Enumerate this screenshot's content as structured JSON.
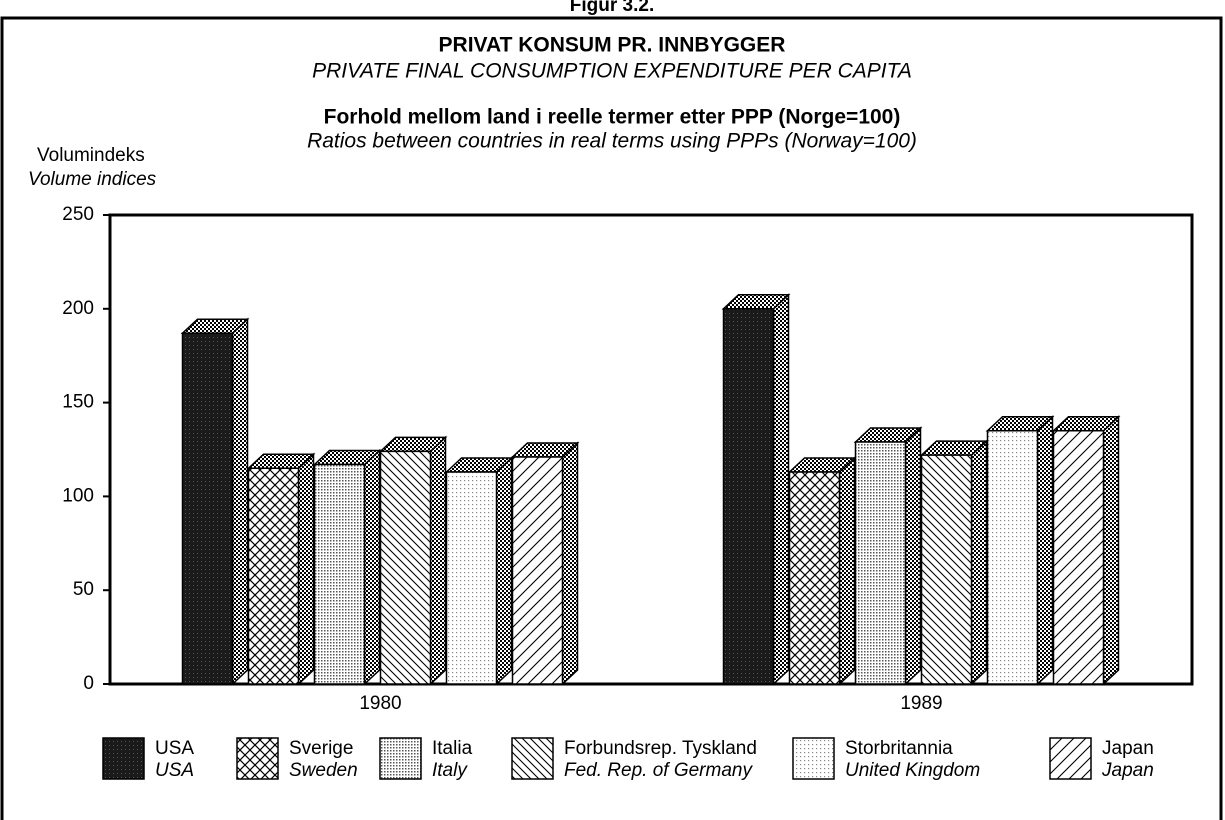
{
  "chart_data": {
    "type": "bar",
    "figure_label": "Figur 3.2.",
    "title": "PRIVAT KONSUM PR. INNBYGGER",
    "subtitle": "PRIVATE FINAL CONSUMPTION EXPENDITURE PER CAPITA",
    "subtitle2": "Forhold mellom land i reelle termer etter PPP (Norge=100)",
    "subtitle2_en": "Ratios between countries in real terms using PPPs (Norway=100)",
    "y_label": "Volumindeks",
    "y_label_en": "Volume indices",
    "categories": [
      "1980",
      "1989"
    ],
    "series": [
      {
        "name": "USA",
        "name_en": "USA",
        "color": "#1a1a1a",
        "pattern": "dark",
        "values": [
          187,
          200
        ]
      },
      {
        "name": "Sverige",
        "name_en": "Sweden",
        "color": "#ffffff",
        "pattern": "cross",
        "values": [
          115,
          113
        ]
      },
      {
        "name": "Italia",
        "name_en": "Italy",
        "color": "#bbbbbb",
        "pattern": "dots",
        "values": [
          117,
          129
        ]
      },
      {
        "name": "Forbundsrep. Tyskland",
        "name_en": "Fed. Rep. of Germany",
        "color": "#ffffff",
        "pattern": "back",
        "values": [
          124,
          122
        ]
      },
      {
        "name": "Storbritannia",
        "name_en": "United Kingdom",
        "color": "#dddddd",
        "pattern": "light",
        "values": [
          113,
          135
        ]
      },
      {
        "name": "Japan",
        "name_en": "Japan",
        "color": "#ffffff",
        "pattern": "fwd",
        "values": [
          121,
          135
        ]
      }
    ],
    "ylim": [
      0,
      250
    ],
    "yticks": [
      0,
      50,
      100,
      150,
      200,
      250
    ],
    "grid": false
  }
}
